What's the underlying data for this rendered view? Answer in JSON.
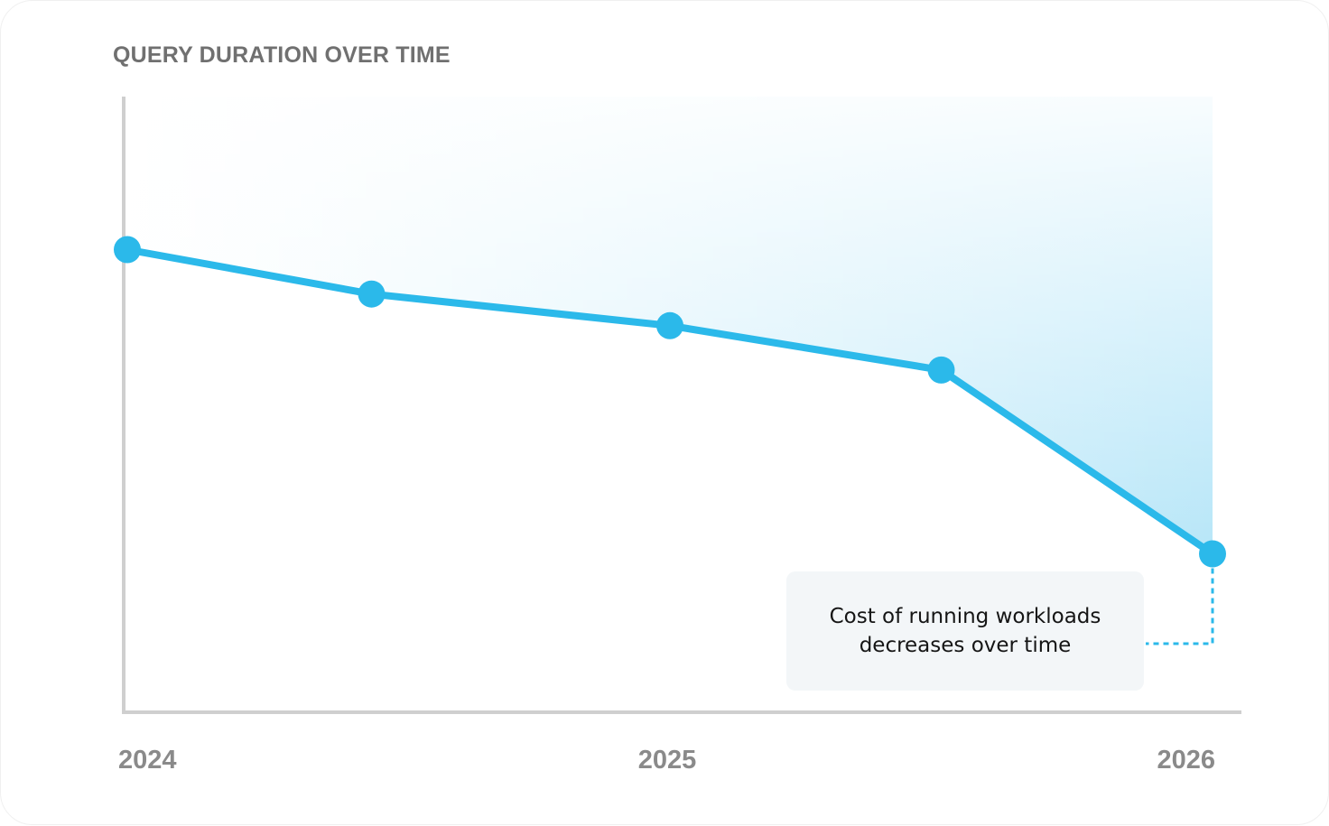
{
  "chart_data": {
    "type": "line",
    "title": "QUERY DURATION OVER TIME",
    "xlabel": "",
    "ylabel": "",
    "x_tick_labels": [
      "2024",
      "2025",
      "2026"
    ],
    "x": [
      2024.0,
      2024.45,
      2025.0,
      2025.5,
      2026.0
    ],
    "series": [
      {
        "values": [
          7.3,
          6.6,
          6.1,
          5.4,
          2.5
        ]
      }
    ],
    "xlim": [
      2024.0,
      2026.0
    ],
    "ylim": [
      0,
      10
    ],
    "area_fill": true,
    "grid": false,
    "annotation": {
      "text_line1": "Cost of running workloads",
      "text_line2": "decreases over time",
      "target_point": 4
    },
    "colors": {
      "line": "#2BB9EA",
      "fill": "#B7E6F8",
      "axis": "#CFCFCF",
      "title": "#707070",
      "tick": "#8A8A8A",
      "callout_bg": "#F3F6F8"
    }
  }
}
